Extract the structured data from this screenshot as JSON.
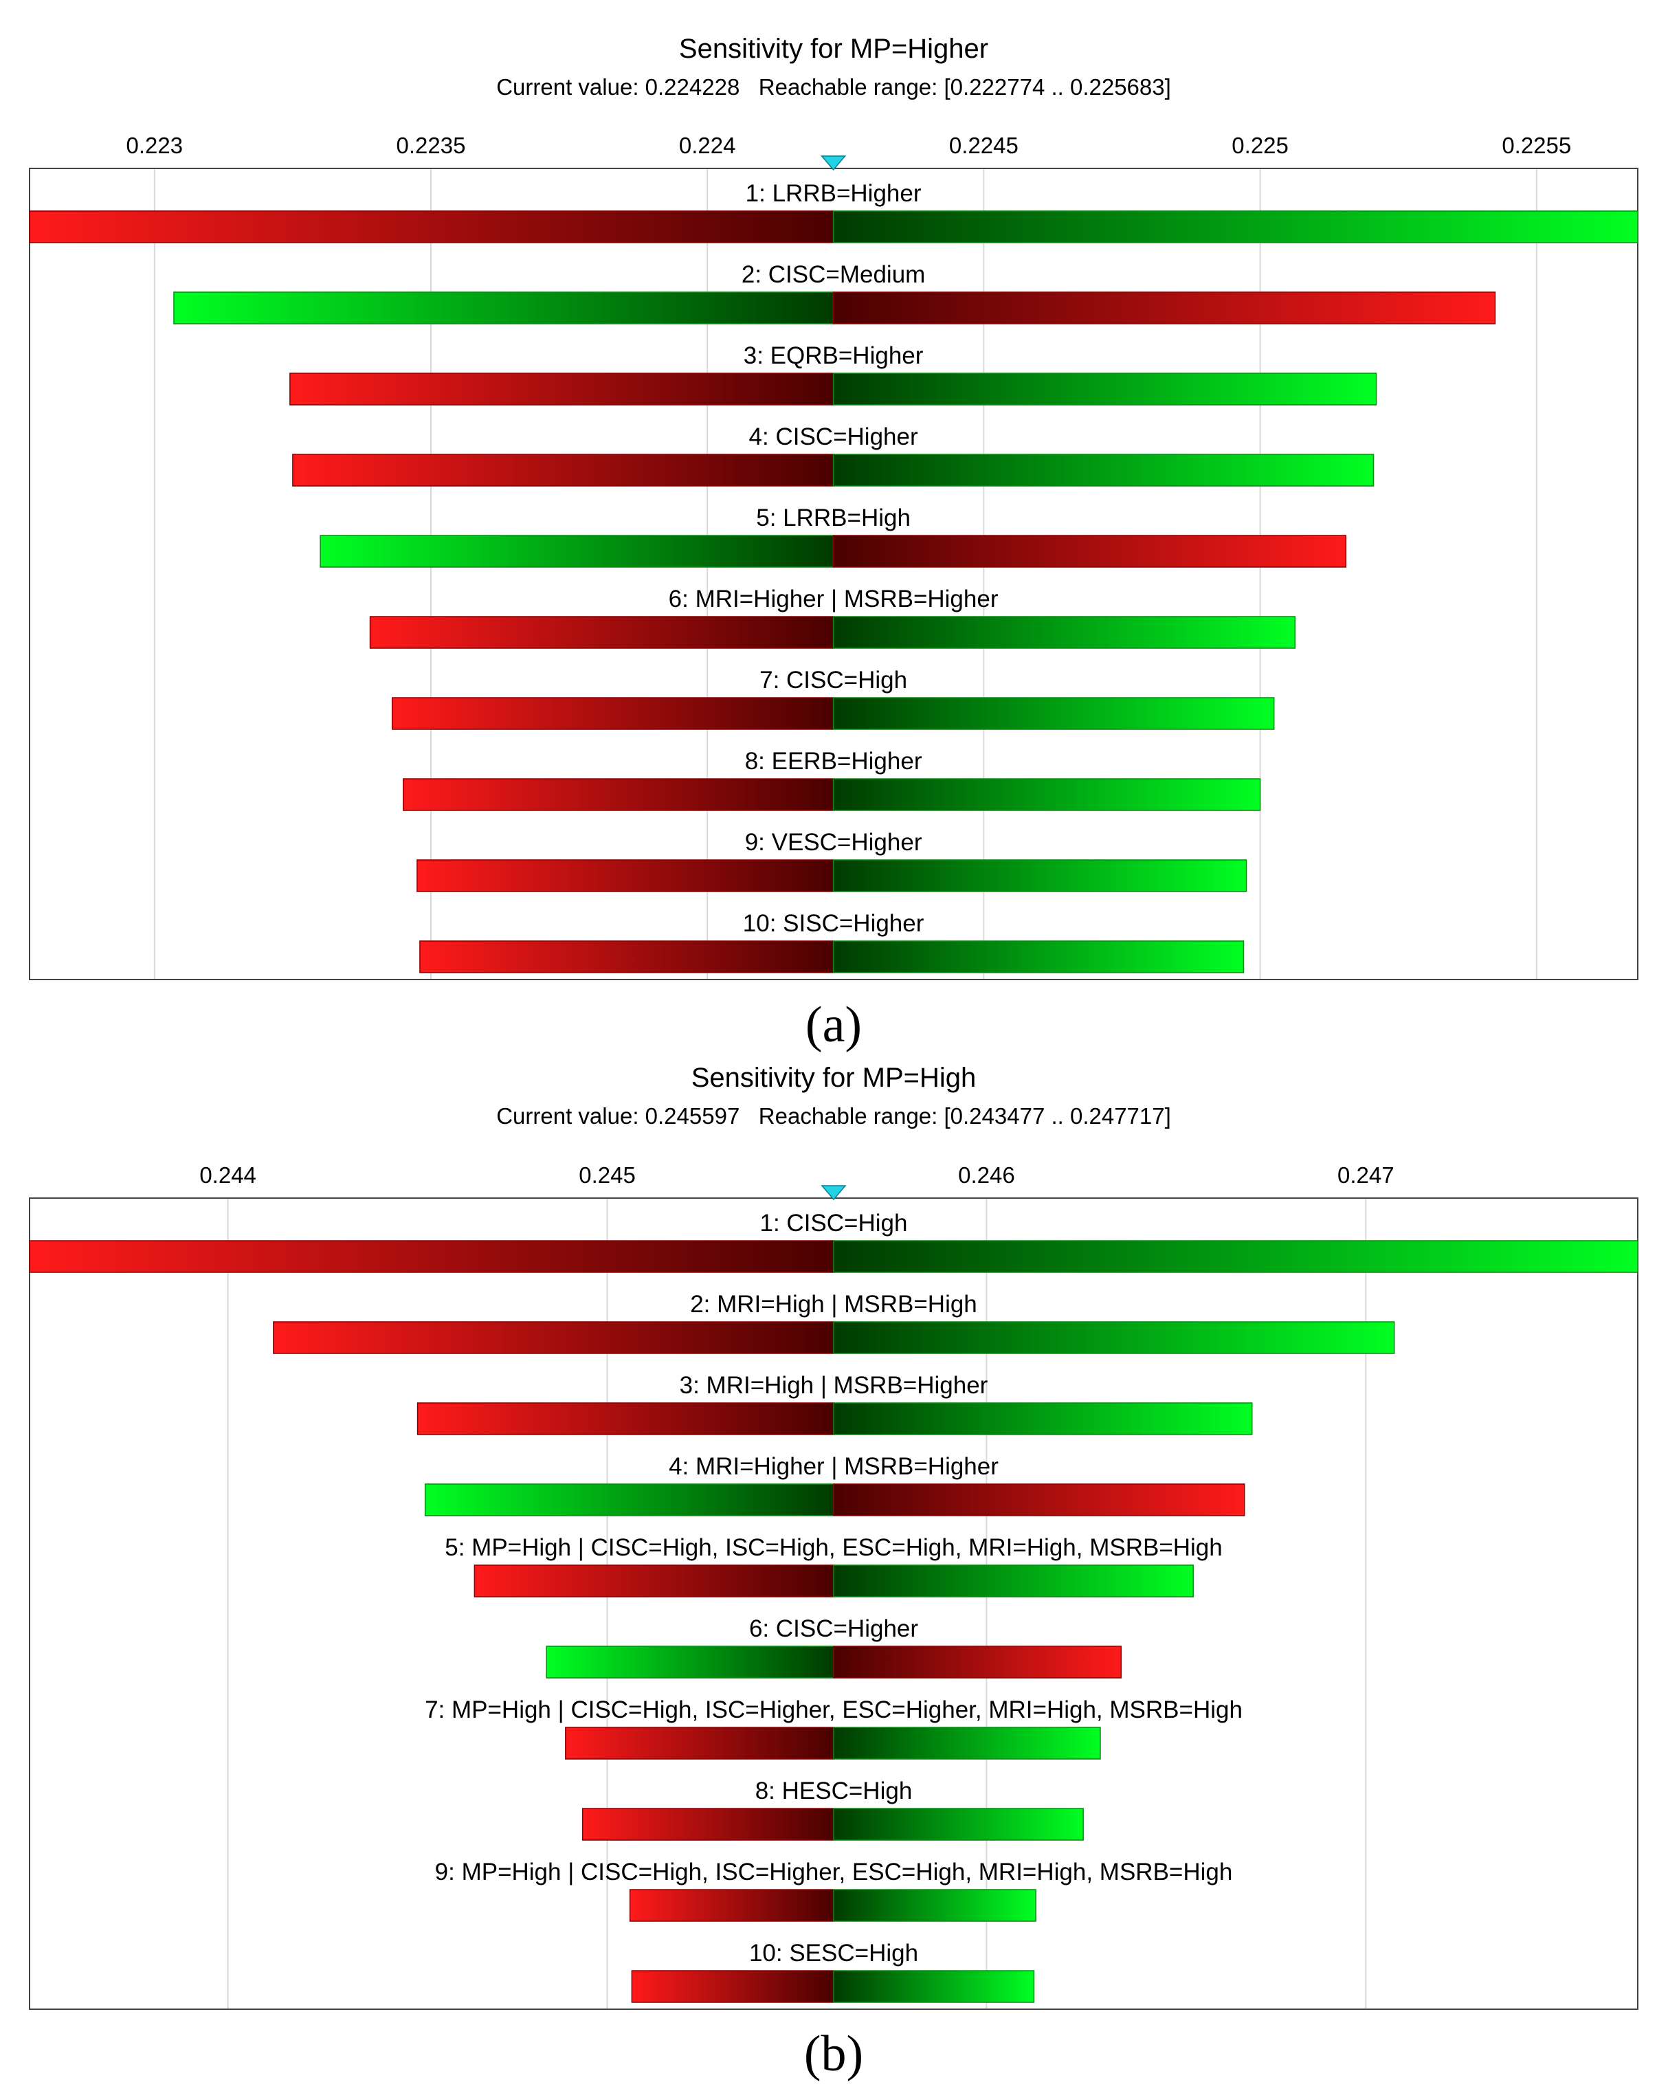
{
  "chart_data": [
    {
      "type": "tornado",
      "panel_label": "(a)",
      "title": "Sensitivity for MP=Higher",
      "subtitle": "Current value: 0.224228   Reachable range: [0.222774 .. 0.225683]",
      "current_value": 0.224228,
      "xlim": [
        0.222774,
        0.225683
      ],
      "ticks": [
        0.223,
        0.2235,
        0.224,
        0.2245,
        0.225,
        0.2255
      ],
      "tick_labels": [
        "0.223",
        "0.2235",
        "0.224",
        "0.2245",
        "0.225",
        "0.2255"
      ],
      "bars": [
        {
          "label": "1: LRRB=Higher",
          "low": 0.222774,
          "high": 0.225683,
          "left_color": "red"
        },
        {
          "label": "2: CISC=Medium",
          "low": 0.223035,
          "high": 0.225425,
          "left_color": "green"
        },
        {
          "label": "3: EQRB=Higher",
          "low": 0.223245,
          "high": 0.22521,
          "left_color": "red"
        },
        {
          "label": "4: CISC=Higher",
          "low": 0.22325,
          "high": 0.225205,
          "left_color": "red"
        },
        {
          "label": "5: LRRB=High",
          "low": 0.2233,
          "high": 0.225155,
          "left_color": "green"
        },
        {
          "label": "6: MRI=Higher | MSRB=Higher",
          "low": 0.22339,
          "high": 0.225063,
          "left_color": "red"
        },
        {
          "label": "7: CISC=High",
          "low": 0.22343,
          "high": 0.225025,
          "left_color": "red"
        },
        {
          "label": "8: EERB=Higher",
          "low": 0.22345,
          "high": 0.225,
          "left_color": "red"
        },
        {
          "label": "9: VESC=Higher",
          "low": 0.223475,
          "high": 0.224975,
          "left_color": "red"
        },
        {
          "label": "10: SISC=Higher",
          "low": 0.22348,
          "high": 0.22497,
          "left_color": "red"
        }
      ]
    },
    {
      "type": "tornado",
      "panel_label": "(b)",
      "title": "Sensitivity for MP=High",
      "subtitle": "Current value: 0.245597   Reachable range: [0.243477 .. 0.247717]",
      "current_value": 0.245597,
      "xlim": [
        0.243477,
        0.247717
      ],
      "ticks": [
        0.244,
        0.245,
        0.246,
        0.247
      ],
      "tick_labels": [
        "0.244",
        "0.245",
        "0.246",
        "0.247"
      ],
      "bars": [
        {
          "label": "1: CISC=High",
          "low": 0.243477,
          "high": 0.247717,
          "left_color": "red"
        },
        {
          "label": "2: MRI=High | MSRB=High",
          "low": 0.24412,
          "high": 0.247075,
          "left_color": "red"
        },
        {
          "label": "3: MRI=High | MSRB=Higher",
          "low": 0.2445,
          "high": 0.2467,
          "left_color": "red"
        },
        {
          "label": "4: MRI=Higher | MSRB=Higher",
          "low": 0.24452,
          "high": 0.24668,
          "left_color": "green"
        },
        {
          "label": "5: MP=High | CISC=High, ISC=High, ESC=High, MRI=High, MSRB=High",
          "low": 0.24465,
          "high": 0.246545,
          "left_color": "red"
        },
        {
          "label": "6: CISC=Higher",
          "low": 0.24484,
          "high": 0.246355,
          "left_color": "green"
        },
        {
          "label": "7: MP=High | CISC=High, ISC=Higher, ESC=Higher, MRI=High, MSRB=High",
          "low": 0.24489,
          "high": 0.2463,
          "left_color": "red"
        },
        {
          "label": "8: HESC=High",
          "low": 0.244935,
          "high": 0.246255,
          "left_color": "red"
        },
        {
          "label": "9: MP=High | CISC=High, ISC=Higher, ESC=High, MRI=High, MSRB=High",
          "low": 0.24506,
          "high": 0.24613,
          "left_color": "red"
        },
        {
          "label": "10: SESC=High",
          "low": 0.245065,
          "high": 0.246125,
          "left_color": "red"
        }
      ]
    }
  ],
  "colors": {
    "red_bright": "#ff1a1a",
    "red_dark": "#4a0000",
    "green_bright": "#00ff22",
    "green_dark": "#003a00",
    "grid": "#d9d9d9",
    "marker": "#22d3e8",
    "frame": "#444444"
  }
}
